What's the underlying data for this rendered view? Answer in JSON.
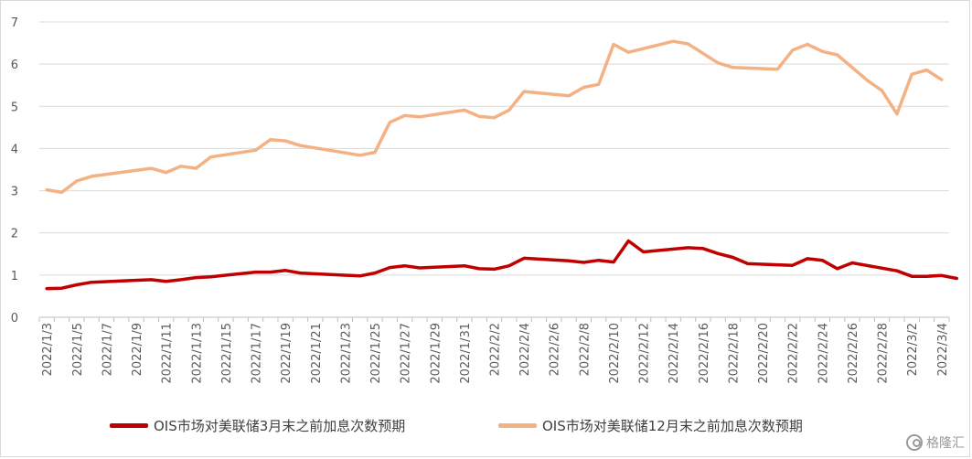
{
  "chart_data": {
    "type": "line",
    "title": "",
    "xlabel": "",
    "ylabel": "",
    "ylim": [
      0,
      7
    ],
    "yticks": [
      0,
      1,
      2,
      3,
      4,
      5,
      6,
      7
    ],
    "grid": "horizontal",
    "legend_position": "bottom",
    "x_tick_labels": [
      "2022/1/3",
      "2022/1/5",
      "2022/1/7",
      "2022/1/9",
      "2022/1/11",
      "2022/1/13",
      "2022/1/15",
      "2022/1/17",
      "2022/1/19",
      "2022/1/21",
      "2022/1/23",
      "2022/1/25",
      "2022/1/27",
      "2022/1/29",
      "2022/1/31",
      "2022/2/2",
      "2022/2/4",
      "2022/2/6",
      "2022/2/8",
      "2022/2/10",
      "2022/2/12",
      "2022/2/14",
      "2022/2/16",
      "2022/2/18",
      "2022/2/20",
      "2022/2/22",
      "2022/2/24",
      "2022/2/26",
      "2022/2/28",
      "2022/3/2",
      "2022/3/4"
    ],
    "x_start": "2022/1/3",
    "series": [
      {
        "name": "OIS市场对美联储3月末之前加息次数预期",
        "color": "#c00000",
        "points": [
          [
            "2022/1/3",
            0.68
          ],
          [
            "2022/1/4",
            0.69
          ],
          [
            "2022/1/5",
            0.77
          ],
          [
            "2022/1/6",
            0.83
          ],
          [
            "2022/1/10",
            0.89
          ],
          [
            "2022/1/11",
            0.85
          ],
          [
            "2022/1/12",
            0.89
          ],
          [
            "2022/1/13",
            0.94
          ],
          [
            "2022/1/14",
            0.96
          ],
          [
            "2022/1/17",
            1.07
          ],
          [
            "2022/1/18",
            1.07
          ],
          [
            "2022/1/19",
            1.11
          ],
          [
            "2022/1/20",
            1.05
          ],
          [
            "2022/1/24",
            0.98
          ],
          [
            "2022/1/25",
            1.05
          ],
          [
            "2022/1/26",
            1.18
          ],
          [
            "2022/1/27",
            1.22
          ],
          [
            "2022/1/28",
            1.17
          ],
          [
            "2022/1/31",
            1.22
          ],
          [
            "2022/2/1",
            1.15
          ],
          [
            "2022/2/2",
            1.14
          ],
          [
            "2022/2/3",
            1.22
          ],
          [
            "2022/2/4",
            1.4
          ],
          [
            "2022/2/7",
            1.34
          ],
          [
            "2022/2/8",
            1.3
          ],
          [
            "2022/2/9",
            1.35
          ],
          [
            "2022/2/10",
            1.31
          ],
          [
            "2022/2/11",
            1.81
          ],
          [
            "2022/2/12",
            1.55
          ],
          [
            "2022/2/15",
            1.65
          ],
          [
            "2022/2/16",
            1.63
          ],
          [
            "2022/2/17",
            1.51
          ],
          [
            "2022/2/18",
            1.42
          ],
          [
            "2022/2/19",
            1.27
          ],
          [
            "2022/2/22",
            1.23
          ],
          [
            "2022/2/23",
            1.39
          ],
          [
            "2022/2/24",
            1.35
          ],
          [
            "2022/2/25",
            1.15
          ],
          [
            "2022/2/26",
            1.29
          ],
          [
            "2022/3/1",
            1.1
          ],
          [
            "2022/3/2",
            0.97
          ],
          [
            "2022/3/3",
            0.97
          ],
          [
            "2022/3/4",
            0.99
          ],
          [
            "2022/3/5",
            0.92
          ]
        ]
      },
      {
        "name": "OIS市场对美联储12月末之前加息次数预期",
        "color": "#f4b183",
        "points": [
          [
            "2022/1/3",
            3.02
          ],
          [
            "2022/1/4",
            2.96
          ],
          [
            "2022/1/5",
            3.23
          ],
          [
            "2022/1/6",
            3.34
          ],
          [
            "2022/1/10",
            3.53
          ],
          [
            "2022/1/11",
            3.43
          ],
          [
            "2022/1/12",
            3.58
          ],
          [
            "2022/1/13",
            3.53
          ],
          [
            "2022/1/14",
            3.8
          ],
          [
            "2022/1/17",
            3.96
          ],
          [
            "2022/1/18",
            4.21
          ],
          [
            "2022/1/19",
            4.18
          ],
          [
            "2022/1/20",
            4.07
          ],
          [
            "2022/1/24",
            3.84
          ],
          [
            "2022/1/25",
            3.91
          ],
          [
            "2022/1/26",
            4.62
          ],
          [
            "2022/1/27",
            4.78
          ],
          [
            "2022/1/28",
            4.75
          ],
          [
            "2022/1/31",
            4.91
          ],
          [
            "2022/2/1",
            4.76
          ],
          [
            "2022/2/2",
            4.73
          ],
          [
            "2022/2/3",
            4.91
          ],
          [
            "2022/2/4",
            5.35
          ],
          [
            "2022/2/7",
            5.25
          ],
          [
            "2022/2/8",
            5.45
          ],
          [
            "2022/2/9",
            5.52
          ],
          [
            "2022/2/10",
            6.47
          ],
          [
            "2022/2/11",
            6.28
          ],
          [
            "2022/2/14",
            6.54
          ],
          [
            "2022/2/15",
            6.48
          ],
          [
            "2022/2/17",
            6.03
          ],
          [
            "2022/2/18",
            5.92
          ],
          [
            "2022/2/21",
            5.88
          ],
          [
            "2022/2/22",
            6.33
          ],
          [
            "2022/2/23",
            6.47
          ],
          [
            "2022/2/24",
            6.3
          ],
          [
            "2022/2/25",
            6.22
          ],
          [
            "2022/2/27",
            5.62
          ],
          [
            "2022/2/28",
            5.37
          ],
          [
            "2022/3/1",
            4.82
          ],
          [
            "2022/3/2",
            5.76
          ],
          [
            "2022/3/3",
            5.86
          ],
          [
            "2022/3/4",
            5.63
          ]
        ]
      }
    ]
  },
  "legend": {
    "item1": "OIS市场对美联储3月末之前加息次数预期",
    "item2": "OIS市场对美联储12月末之前加息次数预期"
  },
  "watermark": {
    "text": "格隆汇",
    "icon": "gelonghui-logo-icon"
  }
}
